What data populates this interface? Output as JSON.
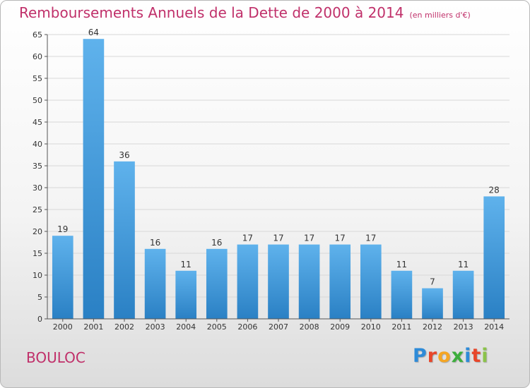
{
  "title": "Remboursements Annuels de la Dette de 2000 à 2014",
  "subtitle": "(en milliers d'€)",
  "commune": "BOULOC",
  "logo": {
    "text": "Proxiti",
    "colors": [
      "#2e8bd8",
      "#e8462a",
      "#f5a623",
      "#3cae3c",
      "#2e8bd8",
      "#e8462a",
      "#8bc34a"
    ]
  },
  "colors": {
    "title": "#c0306a",
    "bar_top": "#5fb2ec",
    "bar_bottom": "#2a80c4",
    "grid": "#d8d8d8"
  },
  "chart_data": {
    "type": "bar",
    "categories": [
      "2000",
      "2001",
      "2002",
      "2003",
      "2004",
      "2005",
      "2006",
      "2007",
      "2008",
      "2009",
      "2010",
      "2011",
      "2012",
      "2013",
      "2014"
    ],
    "values": [
      19,
      64,
      36,
      16,
      11,
      16,
      17,
      17,
      17,
      17,
      17,
      11,
      7,
      11,
      28
    ],
    "title": "Remboursements Annuels de la Dette de 2000 à 2014",
    "xlabel": "",
    "ylabel": "",
    "ylim": [
      0,
      65
    ],
    "yticks": [
      0,
      5,
      10,
      15,
      20,
      25,
      30,
      35,
      40,
      45,
      50,
      55,
      60,
      65
    ],
    "grid": true,
    "data_labels": true
  }
}
